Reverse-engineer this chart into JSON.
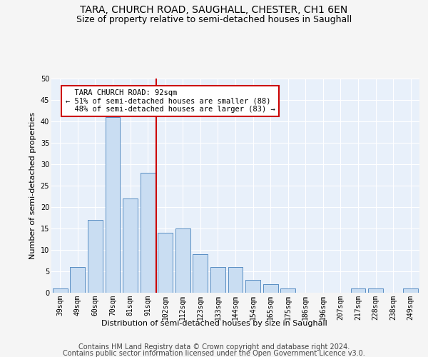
{
  "title": "TARA, CHURCH ROAD, SAUGHALL, CHESTER, CH1 6EN",
  "subtitle": "Size of property relative to semi-detached houses in Saughall",
  "xlabel": "Distribution of semi-detached houses by size in Saughall",
  "ylabel": "Number of semi-detached properties",
  "categories": [
    "39sqm",
    "49sqm",
    "60sqm",
    "70sqm",
    "81sqm",
    "91sqm",
    "102sqm",
    "112sqm",
    "123sqm",
    "133sqm",
    "144sqm",
    "154sqm",
    "165sqm",
    "175sqm",
    "186sqm",
    "196sqm",
    "207sqm",
    "217sqm",
    "228sqm",
    "238sqm",
    "249sqm"
  ],
  "values": [
    1,
    6,
    17,
    41,
    22,
    28,
    14,
    15,
    9,
    6,
    6,
    3,
    2,
    1,
    0,
    0,
    0,
    1,
    1,
    0,
    1
  ],
  "bar_color": "#c9ddf2",
  "bar_edge_color": "#5b8fc4",
  "marker_bin_index": 5,
  "smaller_pct": 51,
  "smaller_count": 88,
  "larger_pct": 48,
  "larger_count": 83,
  "annotation_box_edge": "#cc0000",
  "marker_line_color": "#cc0000",
  "marker_label": "TARA CHURCH ROAD: 92sqm",
  "ylim": [
    0,
    50
  ],
  "yticks": [
    0,
    5,
    10,
    15,
    20,
    25,
    30,
    35,
    40,
    45,
    50
  ],
  "footer1": "Contains HM Land Registry data © Crown copyright and database right 2024.",
  "footer2": "Contains public sector information licensed under the Open Government Licence v3.0.",
  "bg_color": "#e8f0fa",
  "grid_color": "#ffffff",
  "fig_bg_color": "#f5f5f5",
  "title_fontsize": 10,
  "subtitle_fontsize": 9,
  "axis_label_fontsize": 8,
  "tick_fontsize": 7,
  "annotation_fontsize": 7.5,
  "footer_fontsize": 7
}
